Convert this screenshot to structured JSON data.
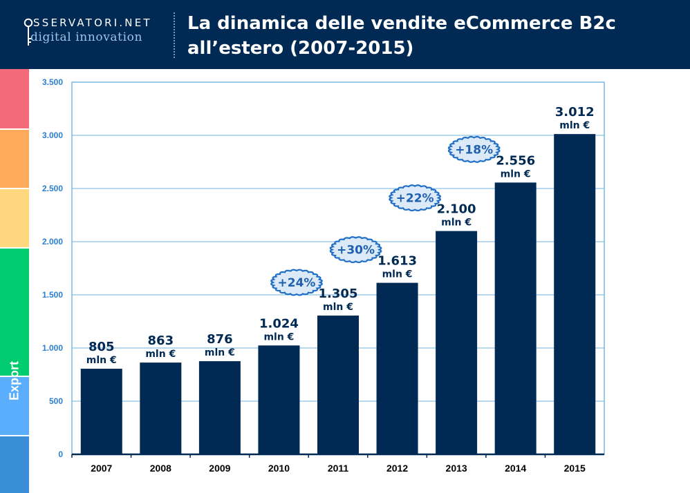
{
  "header": {
    "logo_top": "SSERVATORI.NET",
    "logo_bottom": "digital innovation",
    "title_line1": "La dinamica delle vendite eCommerce B2c",
    "title_line2": "all’estero (2007-2015)",
    "background": "#002a54"
  },
  "sidebar": {
    "label": "Export",
    "strip_colors": [
      "#f36b7a",
      "#fdaa5c",
      "#fed77f",
      "#00cb6e",
      "#5aaefc",
      "#3a8ed8"
    ],
    "active_color": "#00cb6e"
  },
  "chart_data": {
    "type": "bar",
    "categories": [
      "2007",
      "2008",
      "2009",
      "2010",
      "2011",
      "2012",
      "2013",
      "2014",
      "2015"
    ],
    "values": [
      805,
      863,
      876,
      1024,
      1305,
      1613,
      2100,
      2556,
      3012
    ],
    "value_labels": [
      "805",
      "863",
      "876",
      "1.024",
      "1.305",
      "1.613",
      "2.100",
      "2.556",
      "3.012"
    ],
    "unit_label": "mln €",
    "ylim": [
      0,
      3500
    ],
    "yticks": [
      0,
      500,
      1000,
      1500,
      2000,
      2500,
      3000,
      3500
    ],
    "ytick_labels": [
      "0",
      "500",
      "1.000",
      "1.500",
      "2.000",
      "2.500",
      "3.000",
      "3.500"
    ],
    "growth_badges": [
      {
        "category": "2011",
        "label": "+24%"
      },
      {
        "category": "2012",
        "label": "+30%"
      },
      {
        "category": "2013",
        "label": "+22%"
      },
      {
        "category": "2014",
        "label": "+18%"
      }
    ],
    "grid": true,
    "bar_color": "#002a54",
    "grid_color": "#6fb3e0",
    "tick_label_color": "#2a7fd0",
    "badge_fill": "#dce9f6",
    "badge_stroke": "#1f6fc8"
  }
}
